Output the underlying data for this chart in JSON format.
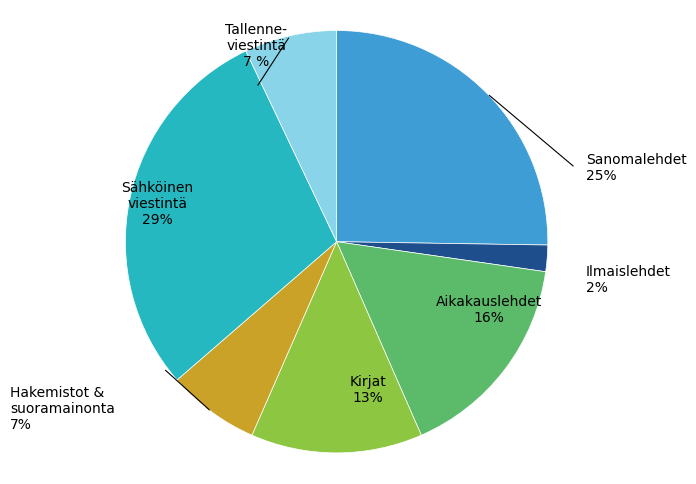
{
  "values": [
    25,
    2,
    16,
    13,
    7,
    29,
    7
  ],
  "colors": [
    "#3D9DD4",
    "#1F4E8C",
    "#5BBB6A",
    "#8DC641",
    "#C9A227",
    "#26B8C0",
    "#89D4E8"
  ],
  "startangle": 90,
  "counterclock": false,
  "background_color": "#ffffff",
  "fontsize": 10,
  "label_texts": [
    "Sanomalehdet\n25%",
    "Ilmaislehdet\n2%",
    "Aikakauslehdet\n16%",
    "Kirjat\n13%",
    "Hakemistot &\nsuoramainonta\n7%",
    "Sähköinen\nviestintä\n29%",
    "Tallenne-\nviestintä\n7 %"
  ]
}
